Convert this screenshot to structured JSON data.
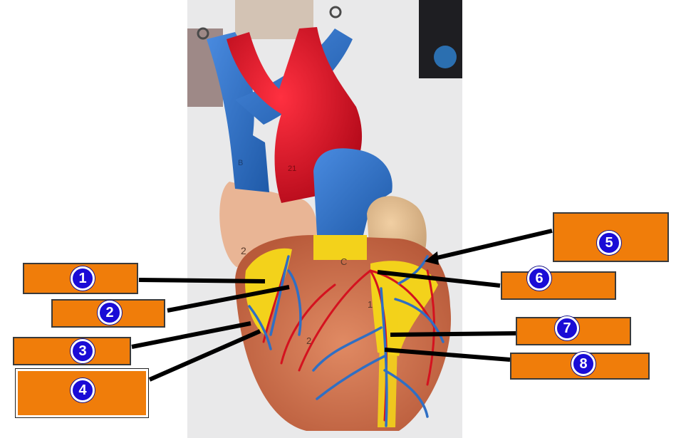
{
  "figure": {
    "subject_description": "anatomical heart model photo",
    "labels": [
      {
        "number": "1"
      },
      {
        "number": "2"
      },
      {
        "number": "3"
      },
      {
        "number": "4"
      },
      {
        "number": "5"
      },
      {
        "number": "6"
      },
      {
        "number": "7"
      },
      {
        "number": "8"
      }
    ],
    "model_markings": [
      "2",
      "C",
      "1",
      "2",
      "B",
      "21"
    ]
  },
  "colors": {
    "label_fill": "#f07d0a",
    "badge_fill": "#1a0cd6",
    "pointer": "#000000",
    "vein_blue": "#2f6fc4",
    "artery_red": "#d4121f",
    "fat_yellow": "#f3d21b",
    "muscle": "#d8744f"
  }
}
